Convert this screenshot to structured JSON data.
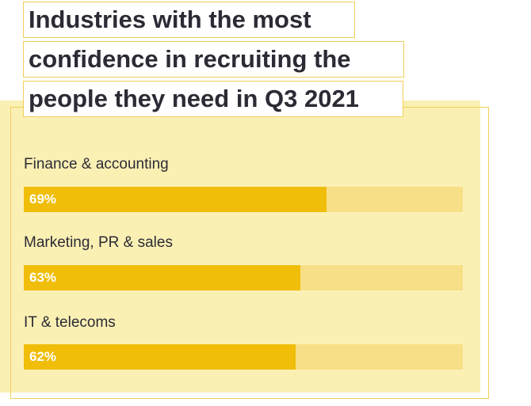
{
  "chart_data": {
    "type": "bar",
    "orientation": "horizontal",
    "title": "Industries with the most confidence in recruiting the people they need in Q3 2021",
    "title_lines": [
      "Industries with the most",
      "confidence in recruiting the",
      "people they need in Q3 2021"
    ],
    "categories": [
      "Finance & accounting",
      "Marketing, PR & sales",
      "IT & telecoms"
    ],
    "values": [
      69,
      63,
      62
    ],
    "value_labels": [
      "69%",
      "63%",
      "62%"
    ],
    "xlim": [
      0,
      100
    ],
    "grid": false,
    "legend": "none",
    "colors": {
      "bar": "#f0bd09",
      "track": "#f7df87",
      "panel": "#fbf0b4",
      "panel_border": "#f0cf5a",
      "text": "#2b2b35",
      "value_text": "#ffffff"
    }
  }
}
